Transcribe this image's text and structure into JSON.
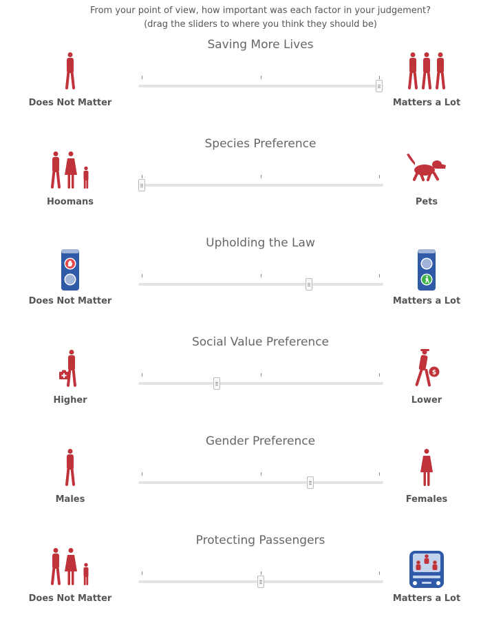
{
  "instructions": {
    "line1": "From your point of view, how important was each factor in your judgement?",
    "line2": "(drag the sliders to where you think they should be)"
  },
  "colors": {
    "figure": "#c0333b",
    "car": "#2e5aa8",
    "track": "#e4e4e4"
  },
  "sliders": [
    {
      "title": "Saving More Lives",
      "left_label": "Does Not Matter",
      "right_label": "Matters a Lot",
      "left_icon": "one-person-icon",
      "right_icon": "three-people-icon",
      "value": 1.0
    },
    {
      "title": "Species Preference",
      "left_label": "Hoomans",
      "right_label": "Pets",
      "left_icon": "family-icon",
      "right_icon": "dog-icon",
      "value": 0.0
    },
    {
      "title": "Upholding the Law",
      "left_label": "Does Not Matter",
      "right_label": "Matters a Lot",
      "left_icon": "red-hand-signal-icon",
      "right_icon": "green-walk-signal-icon",
      "value": 0.703
    },
    {
      "title": "Social Value Preference",
      "left_label": "Higher",
      "right_label": "Lower",
      "left_icon": "doctor-icon",
      "right_icon": "criminal-icon",
      "value": 0.315
    },
    {
      "title": "Gender Preference",
      "left_label": "Males",
      "right_label": "Females",
      "left_icon": "male-icon",
      "right_icon": "female-icon",
      "value": 0.711
    },
    {
      "title": "Protecting Passengers",
      "left_label": "Does Not Matter",
      "right_label": "Matters a Lot",
      "left_icon": "pedestrians-icon",
      "right_icon": "car-passengers-icon",
      "value": 0.5
    }
  ]
}
